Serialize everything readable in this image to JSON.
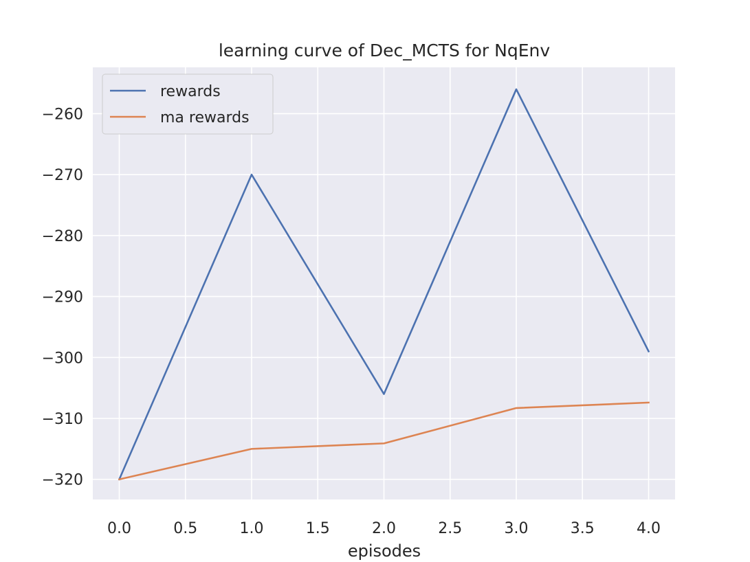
{
  "chart_data": {
    "type": "line",
    "title": "learning curve of Dec_MCTS for NqEnv",
    "xlabel": "episodes",
    "ylabel": "",
    "x": [
      0,
      1,
      2,
      3,
      4
    ],
    "xlim": [
      -0.2,
      4.2
    ],
    "ylim": [
      -323.3,
      -252.4
    ],
    "xticks": [
      0.0,
      0.5,
      1.0,
      1.5,
      2.0,
      2.5,
      3.0,
      3.5,
      4.0
    ],
    "xtick_labels": [
      "0.0",
      "0.5",
      "1.0",
      "1.5",
      "2.0",
      "2.5",
      "3.0",
      "3.5",
      "4.0"
    ],
    "yticks": [
      -320,
      -310,
      -300,
      -290,
      -280,
      -270,
      -260
    ],
    "ytick_labels": [
      "−320",
      "−310",
      "−300",
      "−290",
      "−280",
      "−270",
      "−260"
    ],
    "grid": true,
    "legend_position": "upper-left",
    "series": [
      {
        "name": "rewards",
        "color": "#4c72b0",
        "values": [
          -320,
          -270,
          -306,
          -256,
          -299
        ]
      },
      {
        "name": "ma rewards",
        "color": "#dd8452",
        "values": [
          -320,
          -315,
          -314.1,
          -308.3,
          -307.4
        ]
      }
    ]
  }
}
